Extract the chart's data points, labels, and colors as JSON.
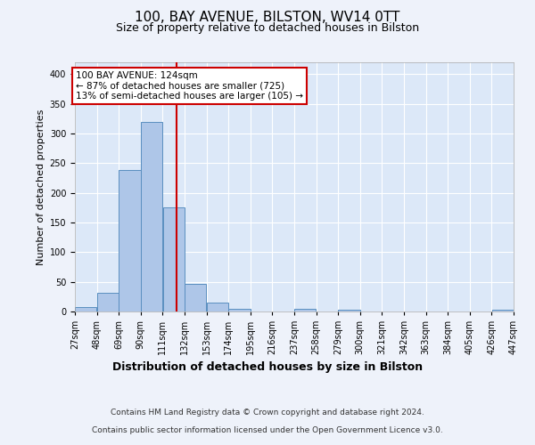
{
  "title_line1": "100, BAY AVENUE, BILSTON, WV14 0TT",
  "title_line2": "Size of property relative to detached houses in Bilston",
  "xlabel": "Distribution of detached houses by size in Bilston",
  "ylabel": "Number of detached properties",
  "footnote1": "Contains HM Land Registry data © Crown copyright and database right 2024.",
  "footnote2": "Contains public sector information licensed under the Open Government Licence v3.0.",
  "annotation_line1": "100 BAY AVENUE: 124sqm",
  "annotation_line2": "← 87% of detached houses are smaller (725)",
  "annotation_line3": "13% of semi-detached houses are larger (105) →",
  "bar_color": "#aec6e8",
  "bar_edge_color": "#5a8fc0",
  "vline_color": "#cc0000",
  "vline_x": 124,
  "bins": [
    27,
    48,
    69,
    90,
    111,
    132,
    153,
    174,
    195,
    216,
    237,
    258,
    279,
    300,
    321,
    342,
    363,
    384,
    405,
    426,
    447
  ],
  "counts": [
    8,
    32,
    238,
    320,
    175,
    46,
    15,
    5,
    0,
    0,
    5,
    0,
    3,
    0,
    0,
    0,
    0,
    0,
    0,
    3
  ],
  "ylim": [
    0,
    420
  ],
  "yticks": [
    0,
    50,
    100,
    150,
    200,
    250,
    300,
    350,
    400
  ],
  "background_color": "#eef2fa",
  "plot_background": "#dce8f8",
  "grid_color": "#ffffff",
  "title1_fontsize": 11,
  "title2_fontsize": 9,
  "ylabel_fontsize": 8,
  "xlabel_fontsize": 9,
  "tick_fontsize": 7,
  "annot_fontsize": 7.5,
  "footnote_fontsize": 6.5
}
